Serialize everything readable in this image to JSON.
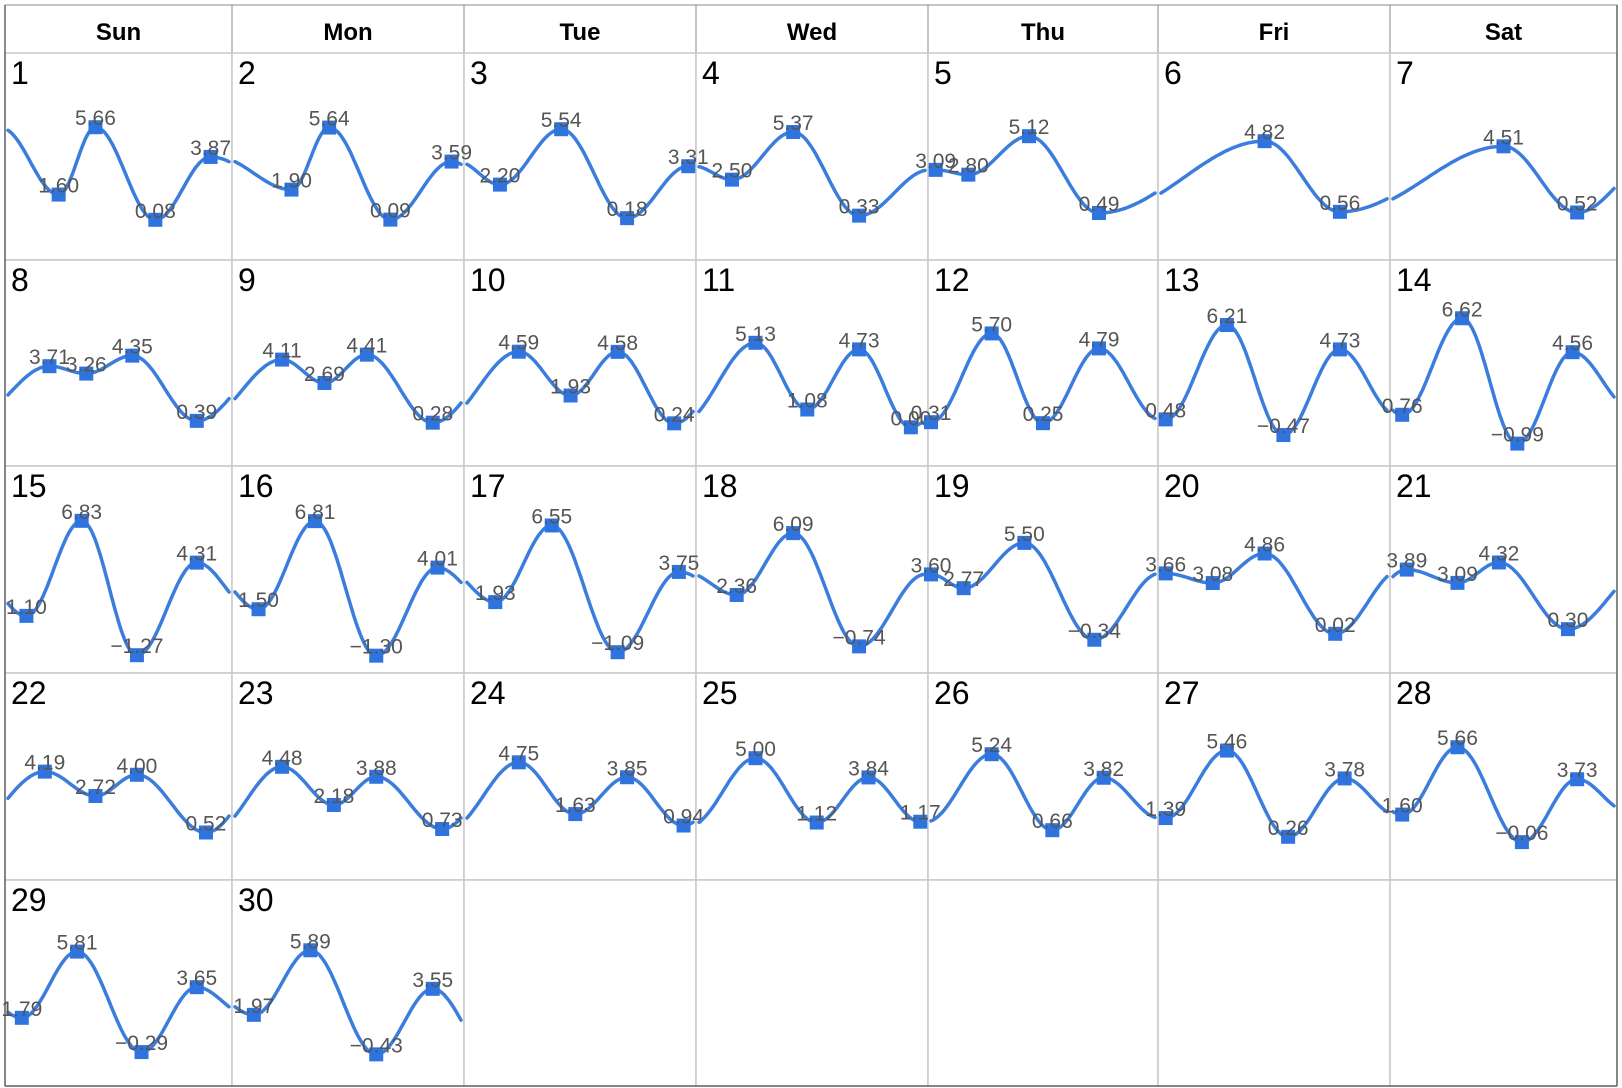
{
  "weekdays": [
    "Sun",
    "Mon",
    "Tue",
    "Wed",
    "Thu",
    "Fri",
    "Sat"
  ],
  "colors": {
    "line": "#3b7ddd",
    "marker": "#2f74de",
    "grid": "#c8c8c8",
    "label": "#555555"
  },
  "chart_data": {
    "type": "line",
    "series_color": "#3b7ddd",
    "days": [
      {
        "day": "1",
        "points": [
          {
            "t": 5.5,
            "v": 1.6
          },
          {
            "t": 9.5,
            "v": 5.66
          },
          {
            "t": 16,
            "v": 0.08
          },
          {
            "t": 22,
            "v": 3.87
          }
        ]
      },
      {
        "day": "2",
        "points": [
          {
            "t": 6,
            "v": 1.9
          },
          {
            "t": 10,
            "v": 5.64
          },
          {
            "t": 16.5,
            "v": 0.09
          },
          {
            "t": 23,
            "v": 3.59
          }
        ]
      },
      {
        "day": "3",
        "points": [
          {
            "t": 3.5,
            "v": 2.2
          },
          {
            "t": 10,
            "v": 5.54
          },
          {
            "t": 17,
            "v": 0.18
          },
          {
            "t": 23.5,
            "v": 3.31
          }
        ]
      },
      {
        "day": "4",
        "points": [
          {
            "t": 3.5,
            "v": 2.5
          },
          {
            "t": 10,
            "v": 5.37
          },
          {
            "t": 17,
            "v": 0.33
          }
        ]
      },
      {
        "day": "5",
        "points": [
          {
            "t": 0.5,
            "v": 3.09
          },
          {
            "t": 4,
            "v": 2.8
          },
          {
            "t": 10.5,
            "v": 5.12
          },
          {
            "t": 18,
            "v": 0.49
          }
        ]
      },
      {
        "day": "6",
        "points": [
          {
            "t": 11,
            "v": 4.82
          },
          {
            "t": 19,
            "v": 0.56
          }
        ]
      },
      {
        "day": "7",
        "points": [
          {
            "t": 12,
            "v": 4.51
          },
          {
            "t": 20,
            "v": 0.52
          }
        ]
      },
      {
        "day": "8",
        "points": [
          {
            "t": 4.5,
            "v": 3.71
          },
          {
            "t": 8.5,
            "v": 3.26
          },
          {
            "t": 13.5,
            "v": 4.35
          },
          {
            "t": 20.5,
            "v": 0.39
          }
        ]
      },
      {
        "day": "9",
        "points": [
          {
            "t": 5,
            "v": 4.11
          },
          {
            "t": 9.5,
            "v": 2.69
          },
          {
            "t": 14,
            "v": 4.41
          },
          {
            "t": 21,
            "v": 0.28
          }
        ]
      },
      {
        "day": "10",
        "points": [
          {
            "t": 5.5,
            "v": 4.59
          },
          {
            "t": 11,
            "v": 1.93
          },
          {
            "t": 16,
            "v": 4.58
          },
          {
            "t": 22,
            "v": 0.24
          }
        ]
      },
      {
        "day": "11",
        "points": [
          {
            "t": 6,
            "v": 5.13
          },
          {
            "t": 11.5,
            "v": 1.08
          },
          {
            "t": 17,
            "v": 4.73
          },
          {
            "t": 22.5,
            "v": 0.0
          }
        ]
      },
      {
        "day": "12",
        "points": [
          {
            "t": 0,
            "v": 0.31
          },
          {
            "t": 6.5,
            "v": 5.7
          },
          {
            "t": 12,
            "v": 0.25
          },
          {
            "t": 18,
            "v": 4.79
          }
        ]
      },
      {
        "day": "13",
        "points": [
          {
            "t": 0.5,
            "v": 0.48
          },
          {
            "t": 7,
            "v": 6.21
          },
          {
            "t": 13,
            "v": -0.47
          },
          {
            "t": 19,
            "v": 4.73
          }
        ]
      },
      {
        "day": "14",
        "points": [
          {
            "t": 1,
            "v": 0.76
          },
          {
            "t": 7.5,
            "v": 6.62
          },
          {
            "t": 13.5,
            "v": -0.99
          },
          {
            "t": 19.5,
            "v": 4.56
          }
        ]
      },
      {
        "day": "15",
        "points": [
          {
            "t": 2,
            "v": 1.1
          },
          {
            "t": 8,
            "v": 6.83
          },
          {
            "t": 14,
            "v": -1.27
          },
          {
            "t": 20.5,
            "v": 4.31
          }
        ]
      },
      {
        "day": "16",
        "points": [
          {
            "t": 2.5,
            "v": 1.5
          },
          {
            "t": 8.5,
            "v": 6.81
          },
          {
            "t": 15,
            "v": -1.3
          },
          {
            "t": 21.5,
            "v": 4.01
          }
        ]
      },
      {
        "day": "17",
        "points": [
          {
            "t": 3,
            "v": 1.93
          },
          {
            "t": 9,
            "v": 6.55
          },
          {
            "t": 16,
            "v": -1.09
          },
          {
            "t": 22.5,
            "v": 3.75
          }
        ]
      },
      {
        "day": "18",
        "points": [
          {
            "t": 4,
            "v": 2.36
          },
          {
            "t": 10,
            "v": 6.09
          },
          {
            "t": 17,
            "v": -0.74
          }
        ]
      },
      {
        "day": "19",
        "points": [
          {
            "t": 0,
            "v": 3.6
          },
          {
            "t": 3.5,
            "v": 2.77
          },
          {
            "t": 10,
            "v": 5.5
          },
          {
            "t": 17.5,
            "v": -0.34
          }
        ]
      },
      {
        "day": "20",
        "points": [
          {
            "t": 0.5,
            "v": 3.66
          },
          {
            "t": 5.5,
            "v": 3.08
          },
          {
            "t": 11,
            "v": 4.86
          },
          {
            "t": 18.5,
            "v": 0.02
          }
        ]
      },
      {
        "day": "21",
        "points": [
          {
            "t": 1.5,
            "v": 3.89
          },
          {
            "t": 7,
            "v": 3.09
          },
          {
            "t": 11.5,
            "v": 4.32
          },
          {
            "t": 19,
            "v": 0.3
          }
        ]
      },
      {
        "day": "22",
        "points": [
          {
            "t": 4,
            "v": 4.19
          },
          {
            "t": 9.5,
            "v": 2.72
          },
          {
            "t": 14,
            "v": 4.0
          },
          {
            "t": 21.5,
            "v": 0.52
          }
        ]
      },
      {
        "day": "23",
        "points": [
          {
            "t": 5,
            "v": 4.48
          },
          {
            "t": 10.5,
            "v": 2.18
          },
          {
            "t": 15,
            "v": 3.88
          },
          {
            "t": 22,
            "v": 0.73
          }
        ]
      },
      {
        "day": "24",
        "points": [
          {
            "t": 5.5,
            "v": 4.75
          },
          {
            "t": 11.5,
            "v": 1.63
          },
          {
            "t": 17,
            "v": 3.85
          },
          {
            "t": 23,
            "v": 0.94
          }
        ]
      },
      {
        "day": "25",
        "points": [
          {
            "t": 6,
            "v": 5.0
          },
          {
            "t": 12.5,
            "v": 1.12
          },
          {
            "t": 18,
            "v": 3.84
          },
          {
            "t": 23.5,
            "v": 1.17
          }
        ]
      },
      {
        "day": "26",
        "points": [
          {
            "t": 6.5,
            "v": 5.24
          },
          {
            "t": 13,
            "v": 0.66
          },
          {
            "t": 18.5,
            "v": 3.82
          }
        ]
      },
      {
        "day": "27",
        "points": [
          {
            "t": 0.5,
            "v": 1.39
          },
          {
            "t": 7,
            "v": 5.46
          },
          {
            "t": 13.5,
            "v": 0.26
          },
          {
            "t": 19.5,
            "v": 3.78
          }
        ]
      },
      {
        "day": "28",
        "points": [
          {
            "t": 1,
            "v": 1.6
          },
          {
            "t": 7,
            "v": 5.66
          },
          {
            "t": 14,
            "v": -0.06
          },
          {
            "t": 20,
            "v": 3.73
          }
        ]
      },
      {
        "day": "29",
        "points": [
          {
            "t": 1.5,
            "v": 1.79
          },
          {
            "t": 7.5,
            "v": 5.81
          },
          {
            "t": 14.5,
            "v": -0.29
          },
          {
            "t": 20.5,
            "v": 3.65
          }
        ]
      },
      {
        "day": "30",
        "points": [
          {
            "t": 2,
            "v": 1.97
          },
          {
            "t": 8,
            "v": 5.89
          },
          {
            "t": 15,
            "v": -0.43
          },
          {
            "t": 21,
            "v": 3.55
          }
        ]
      }
    ]
  }
}
